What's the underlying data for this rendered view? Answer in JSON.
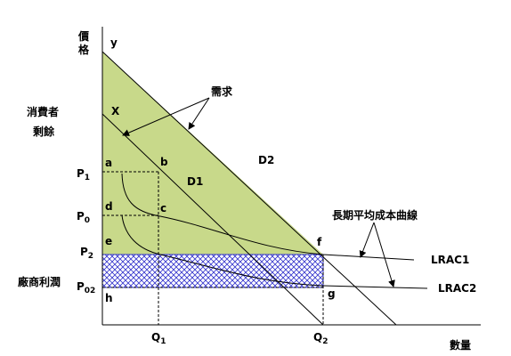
{
  "axis": {
    "y_label": [
      "價",
      "格"
    ],
    "x_label": "數量"
  },
  "lines": {
    "y": "y",
    "x": "X",
    "d1": "D1",
    "d2": "D2"
  },
  "demand_label": "需求",
  "consumer_surplus": [
    "消費者",
    "剩餘"
  ],
  "producer_profit": "廠商利潤",
  "lrac_label": "長期平均成本曲線",
  "prices": [
    {
      "main": "P",
      "sub": "1"
    },
    {
      "main": "P",
      "sub": "0"
    },
    {
      "main": "P",
      "sub": "2"
    },
    {
      "main": "P",
      "sub": "02"
    }
  ],
  "quantities": [
    {
      "main": "Q",
      "sub": "1"
    },
    {
      "main": "Q",
      "sub": "2"
    }
  ],
  "points": {
    "a": "a",
    "b": "b",
    "c": "c",
    "d": "d",
    "e": "e",
    "f": "f",
    "g": "g",
    "h": "h"
  },
  "curves": [
    "LRAC1",
    "LRAC2"
  ]
}
